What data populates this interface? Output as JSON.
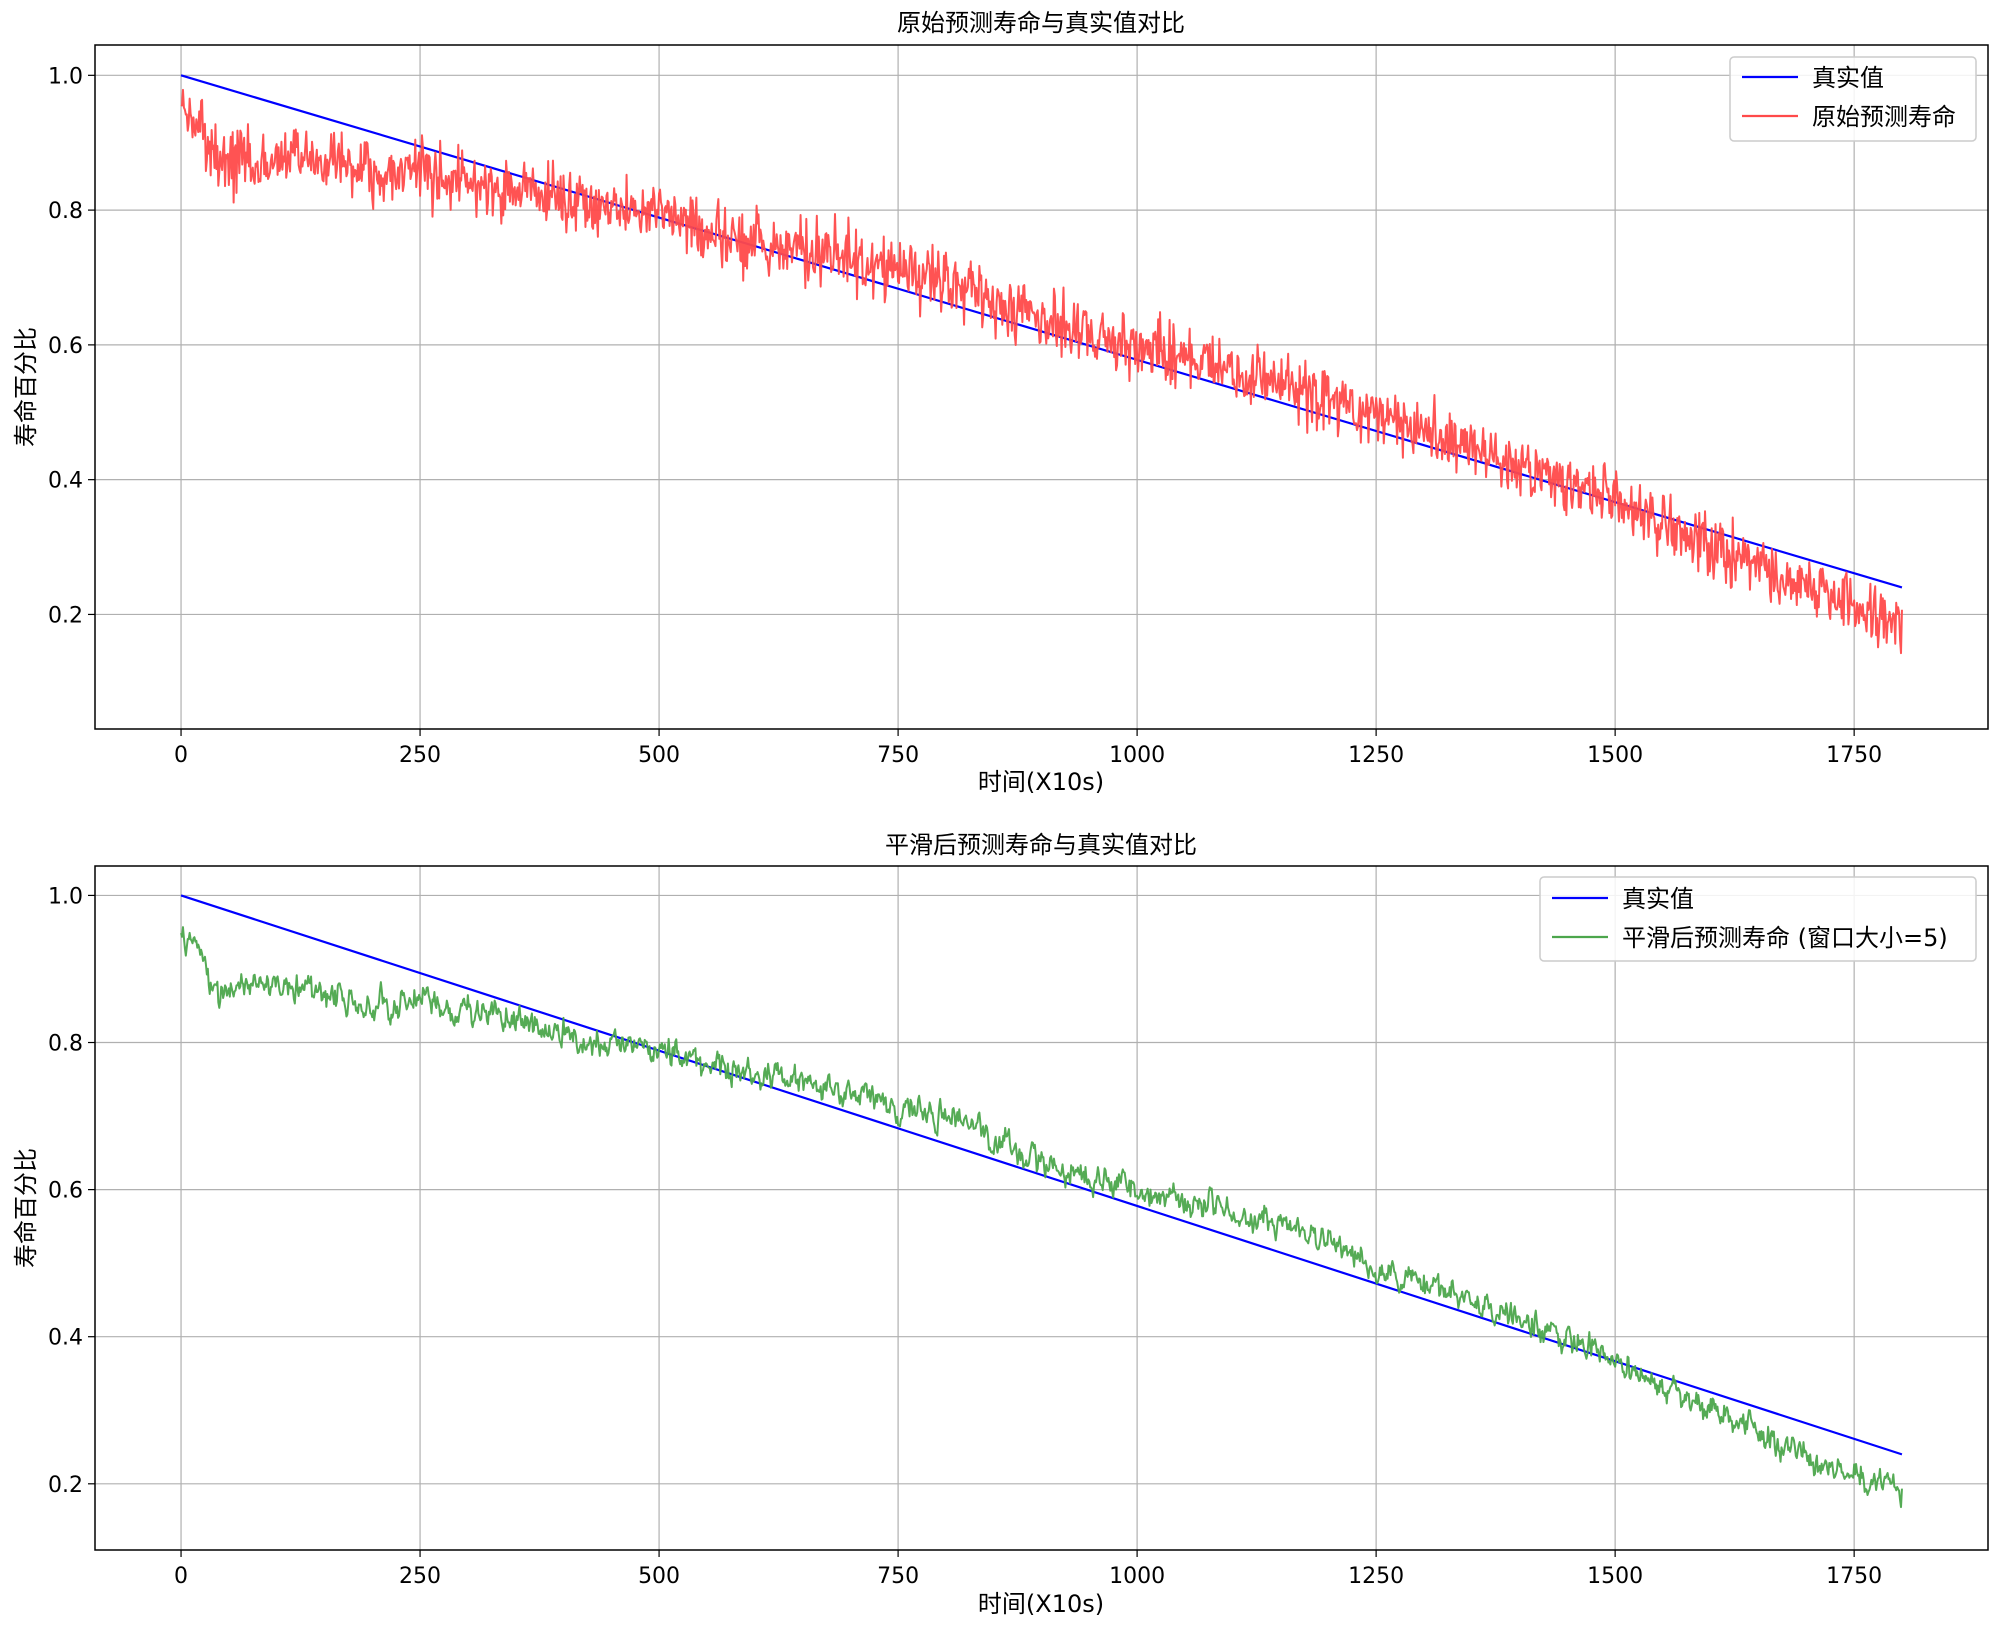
{
  "chart_data": [
    {
      "type": "line",
      "title": "原始预测寿命与真实值对比",
      "xlabel": "时间(X10s)",
      "ylabel": "寿命百分比",
      "xlim": [
        -90,
        1890
      ],
      "ylim": [
        0.03,
        1.045
      ],
      "xticks": [
        0,
        250,
        500,
        750,
        1000,
        1250,
        1500,
        1750
      ],
      "xtick_labels": [
        "0",
        "250",
        "500",
        "750",
        "1000",
        "1250",
        "1500",
        "1750"
      ],
      "yticks": [
        0.2,
        0.4,
        0.6,
        0.8,
        1.0
      ],
      "ytick_labels": [
        "0.2",
        "0.4",
        "0.6",
        "0.8",
        "1.0"
      ],
      "grid": true,
      "legend_position": "upper-right",
      "series": [
        {
          "name": "真实值",
          "color": "#0000ff",
          "x": [
            0,
            1800
          ],
          "y": [
            1.0,
            0.24
          ]
        },
        {
          "name": "原始预测寿命",
          "color": "#ff4a4a",
          "x": [
            0,
            20,
            40,
            60,
            80,
            100,
            150,
            200,
            250,
            300,
            350,
            400,
            450,
            500,
            550,
            600,
            650,
            700,
            750,
            800,
            850,
            900,
            950,
            1000,
            1050,
            1100,
            1150,
            1200,
            1250,
            1300,
            1350,
            1400,
            1450,
            1500,
            1550,
            1600,
            1650,
            1700,
            1750,
            1800
          ],
          "y": [
            0.95,
            0.92,
            0.86,
            0.88,
            0.86,
            0.88,
            0.87,
            0.85,
            0.86,
            0.84,
            0.83,
            0.81,
            0.8,
            0.8,
            0.77,
            0.75,
            0.74,
            0.73,
            0.71,
            0.69,
            0.66,
            0.64,
            0.62,
            0.6,
            0.58,
            0.56,
            0.54,
            0.52,
            0.49,
            0.47,
            0.45,
            0.42,
            0.4,
            0.37,
            0.33,
            0.3,
            0.27,
            0.24,
            0.21,
            0.19
          ],
          "noise_amplitude": 0.07
        }
      ]
    },
    {
      "type": "line",
      "title": "平滑后预测寿命与真实值对比",
      "xlabel": "时间(X10s)",
      "ylabel": "寿命百分比",
      "xlim": [
        -90,
        1890
      ],
      "ylim": [
        0.11,
        1.04
      ],
      "xticks": [
        0,
        250,
        500,
        750,
        1000,
        1250,
        1500,
        1750
      ],
      "xtick_labels": [
        "0",
        "250",
        "500",
        "750",
        "1000",
        "1250",
        "1500",
        "1750"
      ],
      "yticks": [
        0.2,
        0.4,
        0.6,
        0.8,
        1.0
      ],
      "ytick_labels": [
        "0.2",
        "0.4",
        "0.6",
        "0.8",
        "1.0"
      ],
      "grid": true,
      "legend_position": "upper-right",
      "series": [
        {
          "name": "真实值",
          "color": "#0000ff",
          "x": [
            0,
            1800
          ],
          "y": [
            1.0,
            0.24
          ]
        },
        {
          "name": "平滑后预测寿命 (窗口大小=5)",
          "color": "#4ca64c",
          "x": [
            0,
            20,
            40,
            60,
            80,
            100,
            150,
            200,
            250,
            300,
            350,
            400,
            450,
            500,
            550,
            600,
            650,
            700,
            750,
            800,
            850,
            900,
            950,
            1000,
            1050,
            1100,
            1150,
            1200,
            1250,
            1300,
            1350,
            1400,
            1450,
            1500,
            1550,
            1600,
            1650,
            1700,
            1750,
            1800
          ],
          "y": [
            0.95,
            0.93,
            0.86,
            0.88,
            0.89,
            0.88,
            0.87,
            0.85,
            0.86,
            0.84,
            0.83,
            0.81,
            0.8,
            0.8,
            0.77,
            0.76,
            0.75,
            0.73,
            0.71,
            0.7,
            0.67,
            0.64,
            0.62,
            0.6,
            0.58,
            0.57,
            0.55,
            0.53,
            0.49,
            0.47,
            0.45,
            0.42,
            0.4,
            0.37,
            0.33,
            0.3,
            0.27,
            0.24,
            0.21,
            0.19
          ],
          "noise_amplitude": 0.025
        }
      ]
    }
  ]
}
